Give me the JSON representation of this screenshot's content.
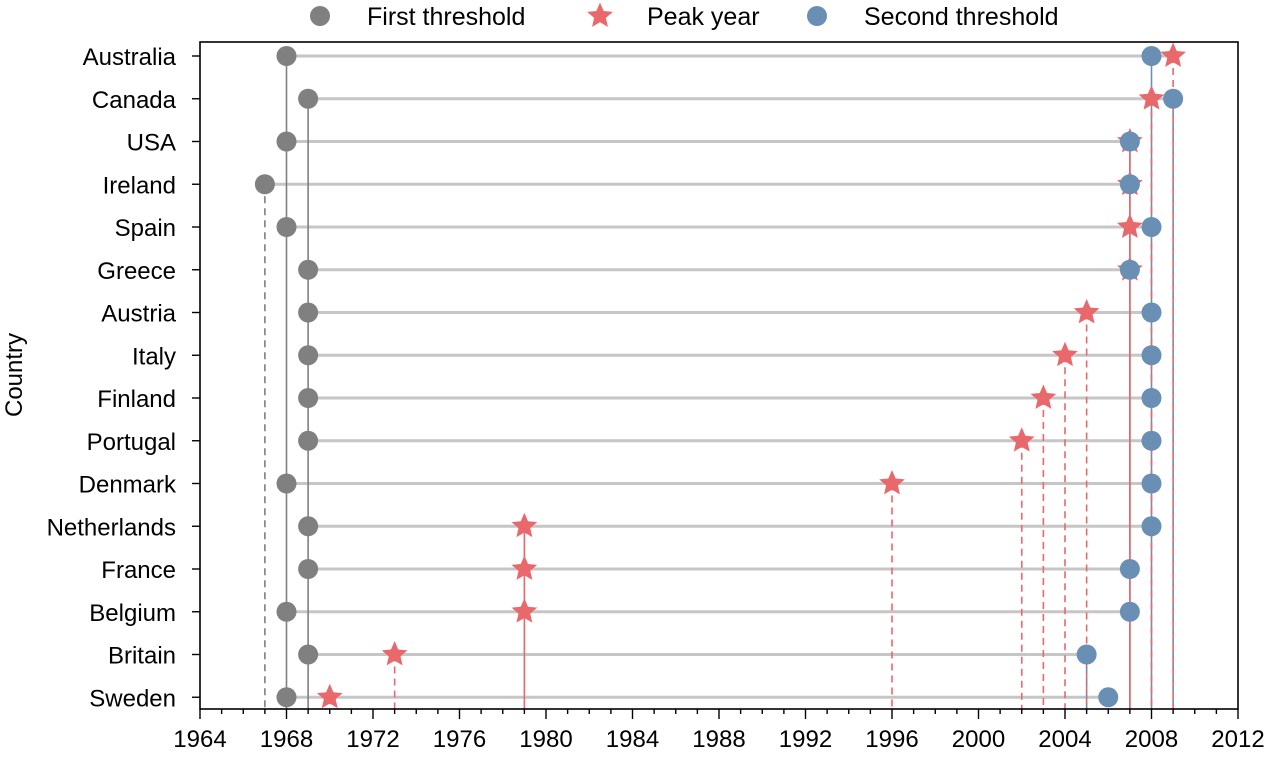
{
  "chart_data": {
    "type": "scatter",
    "ylabel": "Country",
    "xlim": [
      1964,
      2012
    ],
    "xticks": [
      1964,
      1968,
      1972,
      1976,
      1980,
      1984,
      1988,
      1992,
      1996,
      2000,
      2004,
      2008,
      2012
    ],
    "categories": [
      "Australia",
      "Canada",
      "USA",
      "Ireland ",
      "Spain",
      "Greece",
      "Austria",
      "Italy",
      "Finland",
      "Portugal",
      "Denmark",
      "Netherlands",
      "France",
      "Belgium",
      "Britain",
      "Sweden"
    ],
    "legend_position": "top",
    "grid": false,
    "series": [
      {
        "name": "First threshold",
        "marker": "circle",
        "color": "#808080",
        "values": [
          1968,
          1969,
          1968,
          1967,
          1968,
          1969,
          1969,
          1969,
          1969,
          1969,
          1968,
          1969,
          1969,
          1968,
          1969,
          1968
        ]
      },
      {
        "name": "Peak year",
        "marker": "star",
        "color": "#e9686b",
        "values": [
          2009,
          2008,
          2007,
          2007,
          2007,
          2007,
          2005,
          2004,
          2003,
          2002,
          1996,
          1979,
          1979,
          1979,
          1973,
          1970
        ]
      },
      {
        "name": "Second threshold",
        "marker": "circle",
        "color": "#6a8fb5",
        "values": [
          2008,
          2009,
          2007,
          2007,
          2008,
          2007,
          2008,
          2008,
          2008,
          2008,
          2008,
          2008,
          2007,
          2007,
          2005,
          2006
        ]
      }
    ]
  }
}
